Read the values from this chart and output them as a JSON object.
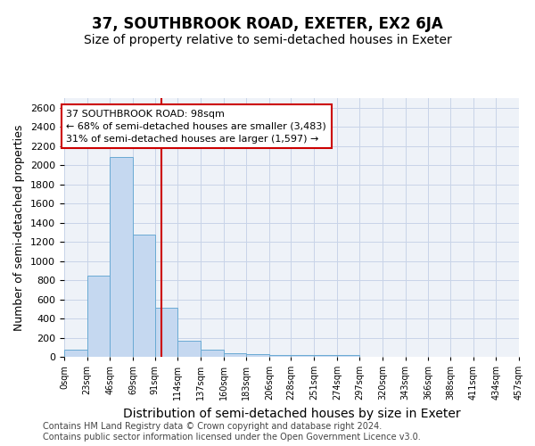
{
  "title": "37, SOUTHBROOK ROAD, EXETER, EX2 6JA",
  "subtitle": "Size of property relative to semi-detached houses in Exeter",
  "xlabel": "Distribution of semi-detached houses by size in Exeter",
  "ylabel": "Number of semi-detached properties",
  "annotation_line1": "37 SOUTHBROOK ROAD: 98sqm",
  "annotation_line2": "← 68% of semi-detached houses are smaller (3,483)",
  "annotation_line3": "31% of semi-detached houses are larger (1,597) →",
  "bin_edges": [
    0,
    23,
    46,
    69,
    91,
    114,
    137,
    160,
    183,
    206,
    228,
    251,
    274,
    297,
    320,
    343,
    366,
    388,
    411,
    434,
    457
  ],
  "bar_heights": [
    75,
    850,
    2090,
    1280,
    510,
    165,
    75,
    40,
    30,
    20,
    20,
    20,
    20,
    0,
    0,
    0,
    0,
    0,
    0,
    0
  ],
  "tick_labels": [
    "0sqm",
    "23sqm",
    "46sqm",
    "69sqm",
    "91sqm",
    "114sqm",
    "137sqm",
    "160sqm",
    "183sqm",
    "206sqm",
    "228sqm",
    "251sqm",
    "274sqm",
    "297sqm",
    "320sqm",
    "343sqm",
    "366sqm",
    "388sqm",
    "411sqm",
    "434sqm",
    "457sqm"
  ],
  "bar_color": "#c5d8f0",
  "bar_edge_color": "#6aaad4",
  "vline_color": "#cc0000",
  "vline_x": 98,
  "ylim": [
    0,
    2700
  ],
  "yticks": [
    0,
    200,
    400,
    600,
    800,
    1000,
    1200,
    1400,
    1600,
    1800,
    2000,
    2200,
    2400,
    2600
  ],
  "grid_color": "#c8d4e8",
  "bg_color": "#eef2f8",
  "title_fontsize": 12,
  "subtitle_fontsize": 10,
  "ylabel_fontsize": 9,
  "xlabel_fontsize": 10,
  "tick_fontsize": 7,
  "ytick_fontsize": 8,
  "footer_text": "Contains HM Land Registry data © Crown copyright and database right 2024.\nContains public sector information licensed under the Open Government Licence v3.0.",
  "footer_fontsize": 7
}
